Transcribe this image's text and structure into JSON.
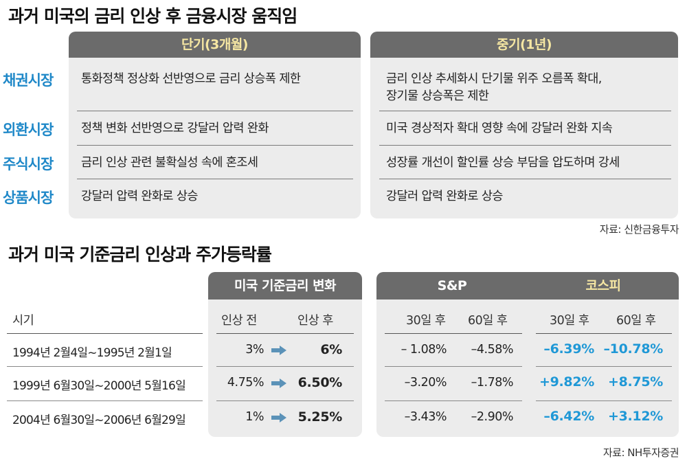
{
  "section1": {
    "title": "과거 미국의 금리 인상 후 금융시장 움직임",
    "col_short": "단기(3개월)",
    "col_mid": "중기(1년)",
    "rows": [
      {
        "market": "채권시장",
        "short": "통화정책 정상화 선반영으로 금리 상승폭 제한",
        "mid_line1": "금리 인상 추세화시 단기물 위주 오름폭 확대,",
        "mid_line2": "장기물 상승폭은 제한"
      },
      {
        "market": "외환시장",
        "short": "정책 변화 선반영으로 강달러 압력 완화",
        "mid_line1": "미국 경상적자 확대 영향 속에 강달러 완화 지속"
      },
      {
        "market": "주식시장",
        "short": "금리 인상 관련 불확실성 속에 혼조세",
        "mid_line1": "성장률 개선이 할인률 상승 부담을 압도하며 강세"
      },
      {
        "market": "상품시장",
        "short": "강달러 압력 완화로 상승",
        "mid_line1": "강달러 압력 완화로 상승"
      }
    ],
    "source": "자료: 신한금융투자"
  },
  "section2": {
    "title": "과거 미국 기준금리 인상과 주가등락률",
    "head_rate": "미국 기준금리 변화",
    "head_snp": "S&P",
    "head_kospi": "코스피",
    "period_label": "시기",
    "before_label": "인상 전",
    "after_label": "인상 후",
    "d30_label": "30일 후",
    "d60_label": "60일 후",
    "rows": [
      {
        "period": "1994년 2월4일~1995년 2월1일",
        "before": "3%",
        "after": "6%",
        "snp30": "– 1.08%",
        "snp60": "–4.58%",
        "kospi30": "–6.39%",
        "kospi60": "–10.78%"
      },
      {
        "period": "1999년 6월30일~2000년 5월16일",
        "before": "4.75%",
        "after": "6.50%",
        "snp30": "–3.20%",
        "snp60": "–1.78%",
        "kospi30": "+9.82%",
        "kospi60": "+8.75%"
      },
      {
        "period": "2004년 6월30일~2006년 6월29일",
        "before": "1%",
        "after": "5.25%",
        "snp30": "–3.43%",
        "snp60": "–2.90%",
        "kospi30": "–6.42%",
        "kospi60": "+3.12%"
      }
    ],
    "source": "자료: NH투자증권"
  },
  "colors": {
    "market_blue": "#1f88c8",
    "kospi_blue": "#1f98d6",
    "head_gray": "#6b6b6b",
    "head_yellow": "#f6e7a3",
    "panel_bg": "#ececec",
    "arrow_blue": "#5b92b8"
  },
  "icons": {
    "change_arrow": "right-arrow-icon"
  }
}
